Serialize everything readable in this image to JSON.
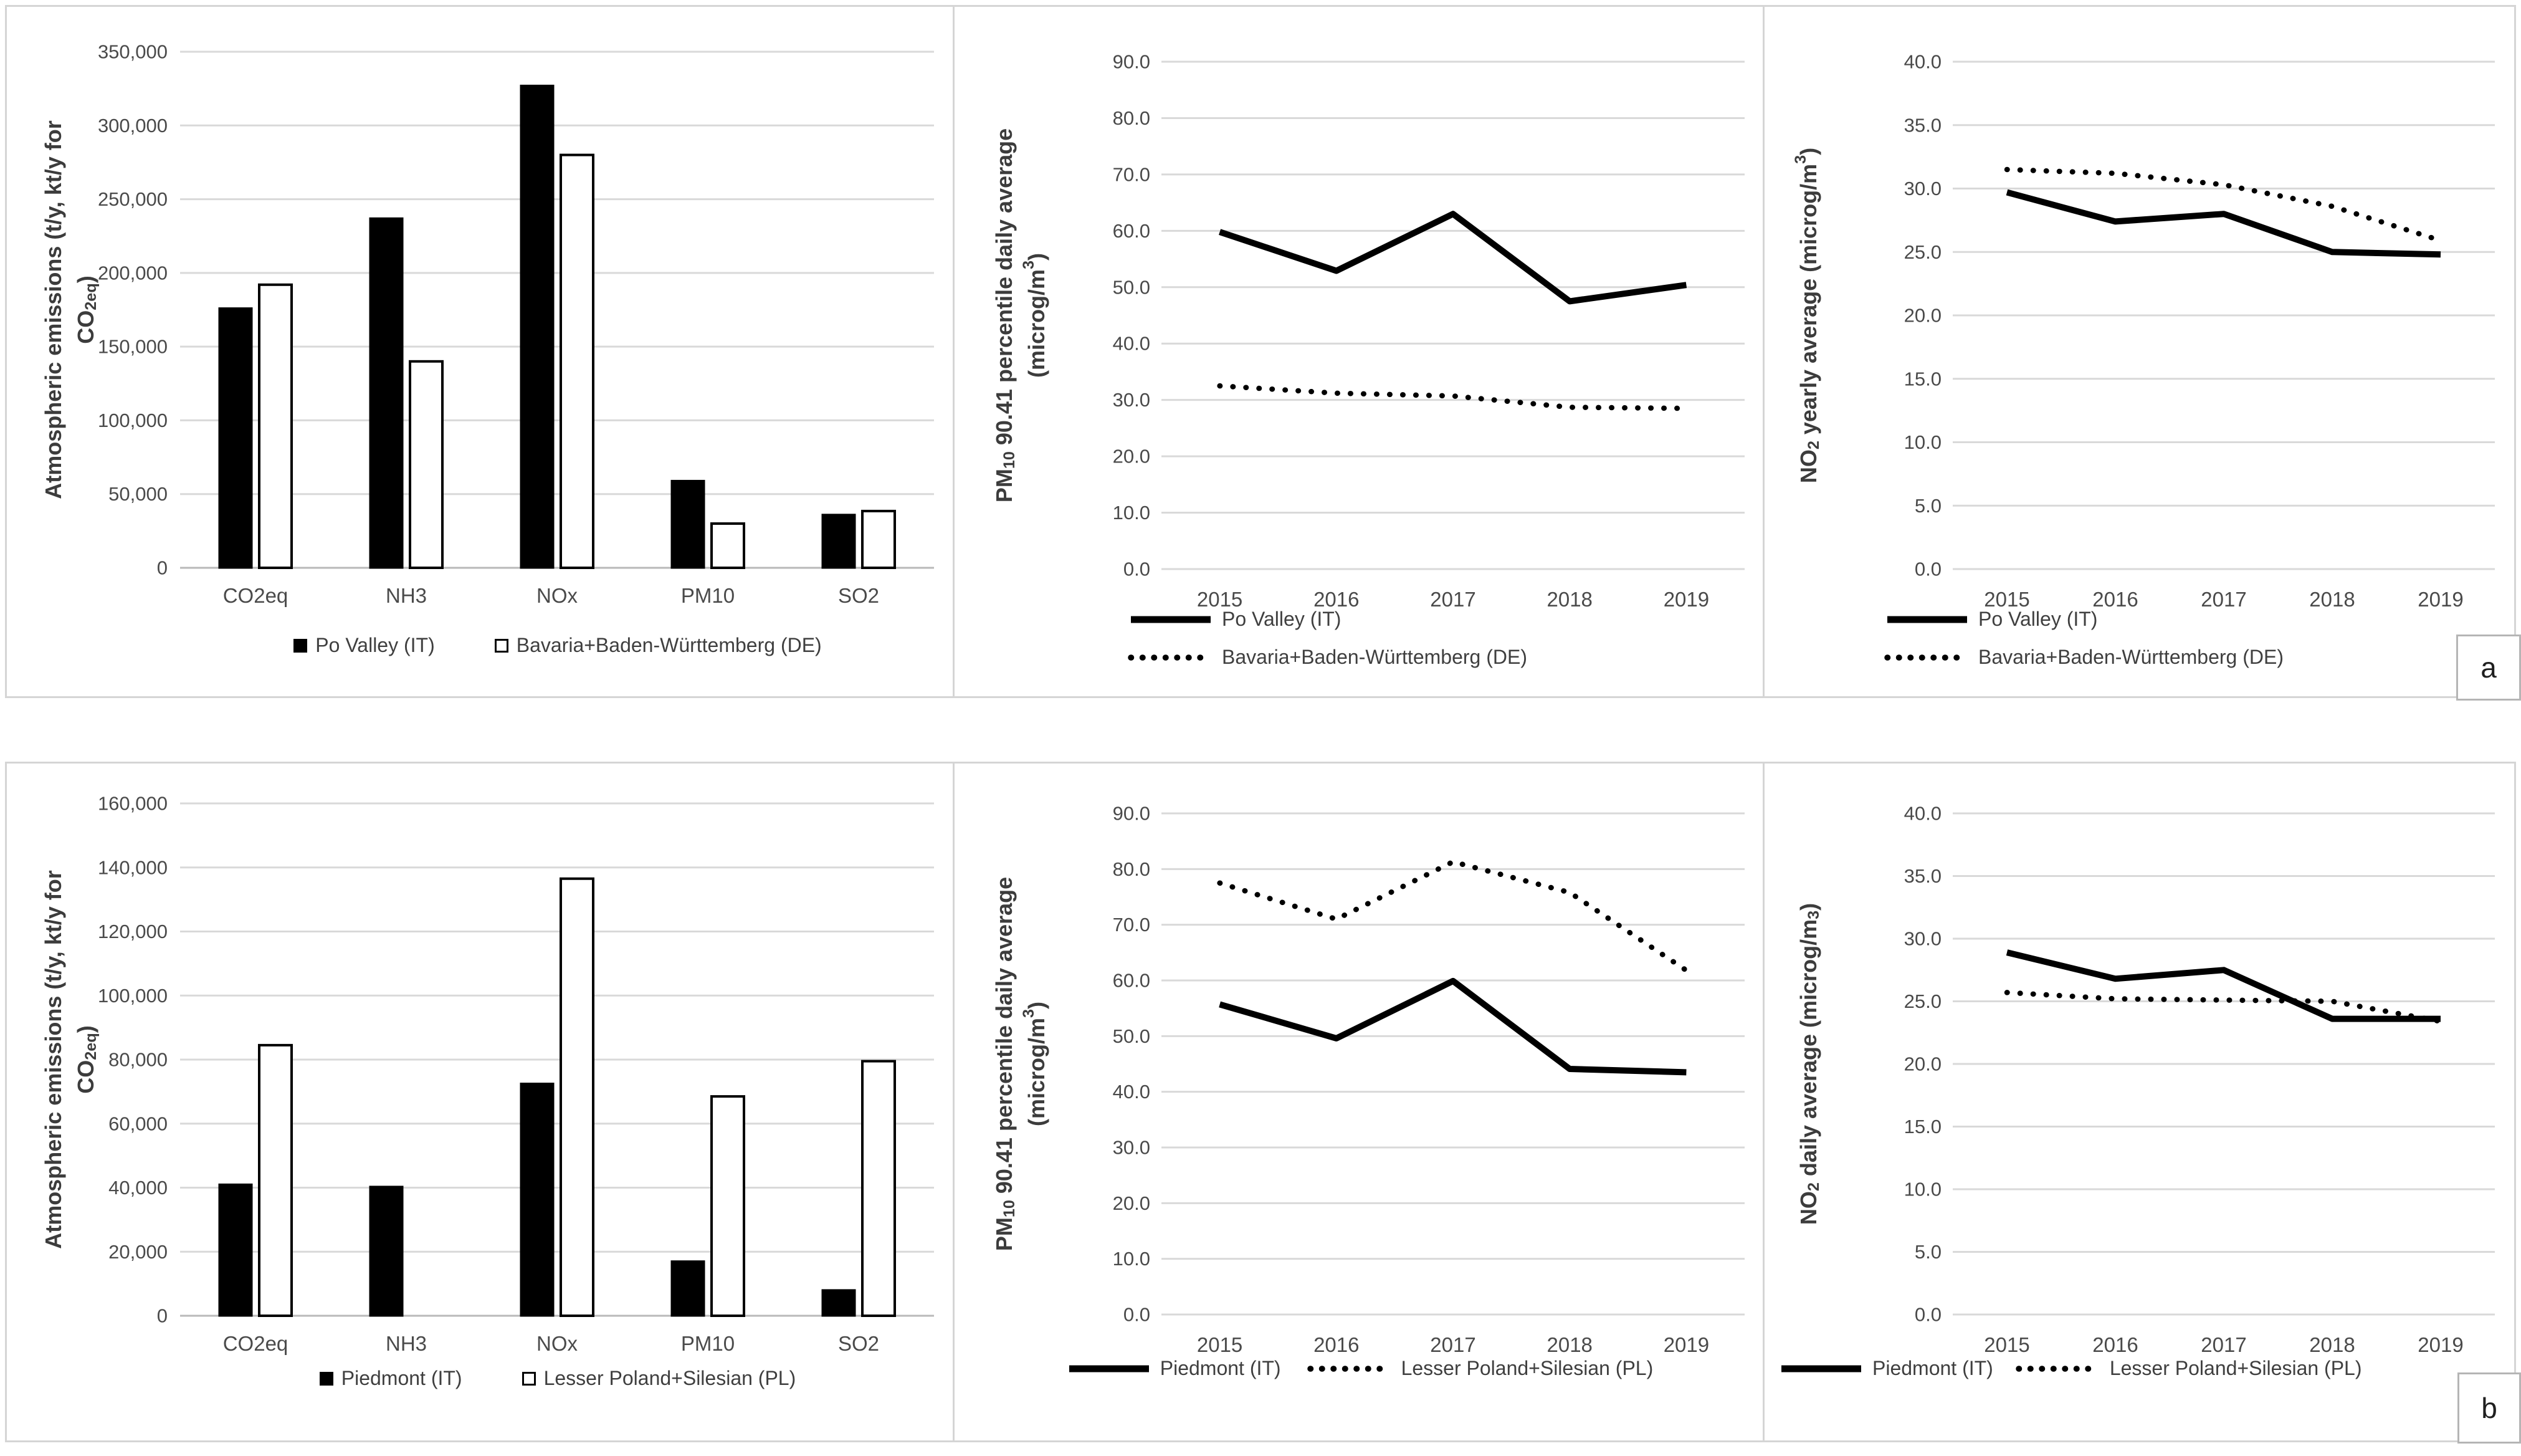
{
  "figure": {
    "corner_a": "a",
    "corner_b": "b"
  },
  "colors": {
    "background": "#ffffff",
    "ink": "#000000",
    "grid": "#d9d9d9",
    "axis_line": "#b9b9b9",
    "panel_border": "#d5d5d5",
    "tick_text": "#4a4a4a",
    "title_text": "#3c3c3c"
  },
  "chart_data": [
    {
      "id": "emissions-po-valley-vs-bavaria",
      "position": "a1",
      "type": "bar",
      "ylabel_lines": [
        "Atmospheric emissions (t/y, kt/y for",
        "CO~2eq~)"
      ],
      "ylim": [
        0,
        350000
      ],
      "ystep": 50000,
      "yticks": [
        "0",
        "50,000",
        "100,000",
        "150,000",
        "200,000",
        "250,000",
        "300,000",
        "350,000"
      ],
      "grid": true,
      "categories": [
        "CO2eq",
        "NH3",
        "NOx",
        "PM10",
        "SO2"
      ],
      "series": [
        {
          "name": "Po Valley (IT)",
          "style": "black",
          "values": [
            176000,
            237000,
            327000,
            59000,
            36000
          ]
        },
        {
          "name": "Bavaria+Baden-Württemberg (DE)",
          "style": "white",
          "values": [
            192000,
            140000,
            280000,
            30000,
            38500
          ]
        }
      ],
      "legend": {
        "position": "bottom-center-row",
        "marker": "square"
      }
    },
    {
      "id": "pm10-po-valley-vs-bavaria",
      "position": "a2",
      "type": "line",
      "ylabel_lines": [
        "PM~10~ 90.41 percentile daily average",
        "(microg/m^3^)"
      ],
      "ylim": [
        0,
        90
      ],
      "ystep": 10,
      "yticks": [
        "0.0",
        "10.0",
        "20.0",
        "30.0",
        "40.0",
        "50.0",
        "60.0",
        "70.0",
        "80.0",
        "90.0"
      ],
      "grid": true,
      "categories": [
        "2015",
        "2016",
        "2017",
        "2018",
        "2019"
      ],
      "series": [
        {
          "name": "Po Valley (IT)",
          "style": "solid",
          "values": [
            59.8,
            52.9,
            63.0,
            47.5,
            50.4
          ]
        },
        {
          "name": "Bavaria+Baden-Württemberg (DE)",
          "style": "dotted",
          "values": [
            32.5,
            31.2,
            30.7,
            28.7,
            28.5
          ]
        }
      ],
      "legend": {
        "position": "bottom-left-column",
        "marker": "line"
      }
    },
    {
      "id": "no2-yearly-po-valley-vs-bavaria",
      "position": "a3",
      "type": "line",
      "ylabel_lines": [
        "NO~2~ yearly average (microg/m^3^)"
      ],
      "ylim": [
        0,
        40
      ],
      "ystep": 5,
      "yticks": [
        "0.0",
        "5.0",
        "10.0",
        "15.0",
        "20.0",
        "25.0",
        "30.0",
        "35.0",
        "40.0"
      ],
      "grid": true,
      "categories": [
        "2015",
        "2016",
        "2017",
        "2018",
        "2019"
      ],
      "series": [
        {
          "name": "Po Valley (IT)",
          "style": "solid",
          "values": [
            29.7,
            27.4,
            28.0,
            25.0,
            24.8
          ]
        },
        {
          "name": "Bavaria+Baden-Württemberg (DE)",
          "style": "dotted",
          "values": [
            31.5,
            31.2,
            30.3,
            28.6,
            25.9
          ]
        }
      ],
      "legend": {
        "position": "bottom-left-column",
        "marker": "line"
      }
    },
    {
      "id": "emissions-piedmont-vs-lesser-poland",
      "position": "b1",
      "type": "bar",
      "ylabel_lines": [
        "Atmospheric emissions (t/y, kt/y for",
        "CO~2eq~)"
      ],
      "ylim": [
        0,
        160000
      ],
      "ystep": 20000,
      "yticks": [
        "0",
        "20,000",
        "40,000",
        "60,000",
        "80,000",
        "100,000",
        "120,000",
        "140,000",
        "160,000"
      ],
      "grid": true,
      "categories": [
        "CO2eq",
        "NH3",
        "NOx",
        "PM10",
        "SO2"
      ],
      "series": [
        {
          "name": "Piedmont (IT)",
          "style": "black",
          "values": [
            41000,
            40300,
            72500,
            17000,
            8000
          ]
        },
        {
          "name": "Lesser Poland+Silesian (PL)",
          "style": "white",
          "values": [
            84500,
            0,
            136500,
            68500,
            79500
          ]
        }
      ],
      "legend": {
        "position": "bottom-center-row",
        "marker": "square"
      }
    },
    {
      "id": "pm10-piedmont-vs-lesser-poland",
      "position": "b2",
      "type": "line",
      "ylabel_lines": [
        "PM~10~ 90.41 percentile daily average",
        "(microg/m^3^)"
      ],
      "ylim": [
        0,
        90
      ],
      "ystep": 10,
      "yticks": [
        "0.0",
        "10.0",
        "20.0",
        "30.0",
        "40.0",
        "50.0",
        "60.0",
        "70.0",
        "80.0",
        "90.0"
      ],
      "grid": true,
      "categories": [
        "2015",
        "2016",
        "2017",
        "2018",
        "2019"
      ],
      "series": [
        {
          "name": "Piedmont (IT)",
          "style": "solid",
          "values": [
            55.7,
            49.6,
            59.9,
            44.1,
            43.5
          ]
        },
        {
          "name": "Lesser Poland+Silesian (PL)",
          "style": "dotted",
          "values": [
            77.5,
            71.0,
            81.3,
            75.8,
            61.8
          ]
        }
      ],
      "legend": {
        "position": "bottom-center-row",
        "marker": "line"
      }
    },
    {
      "id": "no2-daily-piedmont-vs-lesser-poland",
      "position": "b3",
      "type": "line",
      "ylabel_lines": [
        "NO~2~ daily average (microg/m~3~)"
      ],
      "ylim": [
        0,
        40
      ],
      "ystep": 5,
      "yticks": [
        "0.0",
        "5.0",
        "10.0",
        "15.0",
        "20.0",
        "25.0",
        "30.0",
        "35.0",
        "40.0"
      ],
      "grid": true,
      "categories": [
        "2015",
        "2016",
        "2017",
        "2018",
        "2019"
      ],
      "series": [
        {
          "name": "Piedmont (IT)",
          "style": "solid",
          "values": [
            28.9,
            26.8,
            27.5,
            23.6,
            23.6
          ]
        },
        {
          "name": "Lesser Poland+Silesian (PL)",
          "style": "dotted",
          "values": [
            25.7,
            25.2,
            25.1,
            25.0,
            23.4
          ]
        }
      ],
      "legend": {
        "position": "bottom-left-row",
        "marker": "line"
      }
    }
  ]
}
